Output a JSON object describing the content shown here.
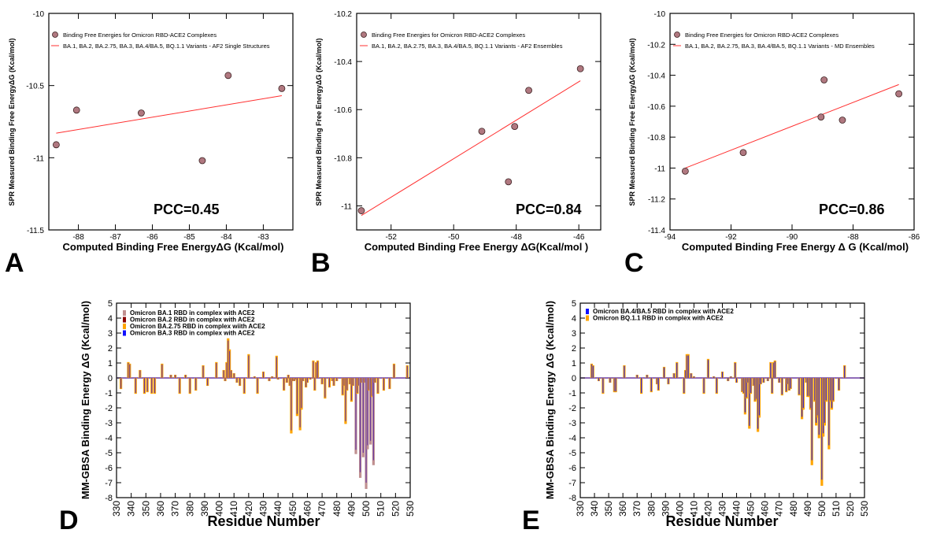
{
  "colors": {
    "point_fill": "#b07880",
    "fit_line": "#ff3030",
    "ba1": "#c09090",
    "ba2": "#8b0000",
    "ba275": "#ffa500",
    "ba3": "#1010ff",
    "ba45": "#1010ff",
    "bq11": "#ffa500",
    "combined": "#6a3aa0"
  },
  "chart_data": [
    {
      "id": "A",
      "type": "scatter",
      "panel_letter": "A",
      "legend": {
        "points": "Binding Free Energies for Omicron RBD-ACE2 Complexes",
        "line": "BA.1, BA.2, BA.2.75, BA.3, BA.4/BA.5, BQ.1.1 Variants - AF2 Single Structures"
      },
      "annotation": "PCC=0.45",
      "xlabel": "Computed Binding Free  EnergyΔG (Kcal/mol)",
      "ylabel": "SPR Measured Binding Free  EnergyΔG (Kcal/mol)",
      "xlim": [
        -88.8,
        -82.2
      ],
      "ylim": [
        -11.5,
        -10
      ],
      "xticks": [
        -88,
        -87,
        -86,
        -85,
        -84,
        -83
      ],
      "yticks": [
        -11.5,
        -11,
        -10.5,
        -10
      ],
      "ytick_labels": [
        "-11.5",
        "-11",
        "-10.5",
        "-10"
      ],
      "points": [
        {
          "x": -88.6,
          "y": -10.91
        },
        {
          "x": -88.05,
          "y": -10.67
        },
        {
          "x": -86.3,
          "y": -10.69
        },
        {
          "x": -84.65,
          "y": -11.02
        },
        {
          "x": -83.95,
          "y": -10.43
        },
        {
          "x": -82.5,
          "y": -10.52
        }
      ],
      "fit": [
        [
          -88.6,
          -10.83
        ],
        [
          -82.5,
          -10.57
        ]
      ]
    },
    {
      "id": "B",
      "type": "scatter",
      "panel_letter": "B",
      "legend": {
        "points": "Binding Free Energies for Omicron RBD-ACE2 Complexes",
        "line": "BA.1, BA.2, BA.2.75, BA.3, BA.4/BA.5, BQ.1.1 Variants - AF2 Ensembles"
      },
      "annotation": "PCC=0.84",
      "xlabel": "Computed Binding Free Energy ΔG(Kcal/mol )",
      "ylabel": "SPR Measured Binding Free  EnergyΔG (Kcal/mol)",
      "xlim": [
        -53.1,
        -45.3
      ],
      "ylim": [
        -11.1,
        -10.2
      ],
      "xticks": [
        -52,
        -50,
        -48,
        -46
      ],
      "yticks": [
        -11,
        -10.8,
        -10.6,
        -10.4,
        -10.2
      ],
      "ytick_labels": [
        "-11",
        "-10.8",
        "-10.6",
        "-10.4",
        "-10.2"
      ],
      "points": [
        {
          "x": -52.95,
          "y": -11.02
        },
        {
          "x": -49.1,
          "y": -10.69
        },
        {
          "x": -48.25,
          "y": -10.9
        },
        {
          "x": -48.05,
          "y": -10.67
        },
        {
          "x": -47.6,
          "y": -10.52
        },
        {
          "x": -45.95,
          "y": -10.43
        }
      ],
      "fit": [
        [
          -52.95,
          -11.04
        ],
        [
          -45.95,
          -10.48
        ]
      ]
    },
    {
      "id": "C",
      "type": "scatter",
      "panel_letter": "C",
      "legend": {
        "points": "Binding Free Energies for Omicron RBD-ACE2 Complexes",
        "line": "BA.1, BA.2, BA.2.75, BA.3, BA.4/BA.5, BQ.1.1 Variants - MD Ensembles"
      },
      "annotation": "PCC=0.86",
      "xlabel": "Computed Binding Free   Energy Δ G (Kcal/mol)",
      "ylabel": "SPR Measured Binding Free  EnergyΔG (Kcal/mol)",
      "xlim": [
        -94,
        -86
      ],
      "ylim": [
        -11.4,
        -10
      ],
      "xticks": [
        -94,
        -92,
        -90,
        -88,
        -86
      ],
      "yticks": [
        -11.4,
        -11.2,
        -11,
        -10.8,
        -10.6,
        -10.4,
        -10.2,
        -10
      ],
      "ytick_labels": [
        "-11.4",
        "-11.2",
        "-11",
        "-10.8",
        "-10.6",
        "-10.4",
        "-10.2",
        "-10"
      ],
      "points": [
        {
          "x": -93.5,
          "y": -11.02
        },
        {
          "x": -91.6,
          "y": -10.9
        },
        {
          "x": -89.05,
          "y": -10.67
        },
        {
          "x": -88.95,
          "y": -10.43
        },
        {
          "x": -88.35,
          "y": -10.69
        },
        {
          "x": -86.5,
          "y": -10.52
        }
      ],
      "fit": [
        [
          -93.5,
          -11.0
        ],
        [
          -86.5,
          -10.46
        ]
      ]
    },
    {
      "id": "D",
      "type": "bar",
      "panel_letter": "D",
      "xlabel": "Residue Number",
      "ylabel": "MM-GBSA Binding Energy  ΔG (Kcal/mol)",
      "xlim": [
        330,
        530
      ],
      "ylim": [
        -8,
        5
      ],
      "xticks": [
        330,
        340,
        350,
        360,
        370,
        380,
        390,
        400,
        410,
        420,
        430,
        440,
        450,
        460,
        470,
        480,
        490,
        500,
        510,
        520,
        530
      ],
      "yticks": [
        -8,
        -7,
        -6,
        -5,
        -4,
        -3,
        -2,
        -1,
        0,
        1,
        2,
        3,
        4,
        5
      ],
      "legend": [
        {
          "name": "Omicron BA.1 RBD  in complex with ACE2",
          "color": "#c09090"
        },
        {
          "name": "Omicron BA.2 RBD in complex with ACE2",
          "color": "#8b0000"
        },
        {
          "name": "Omicron BA.2.75 RBD in complex wiith ACE2",
          "color": "#ffa500"
        },
        {
          "name": "Omicron BA.3 RBD in complex with ACE2",
          "color": "#1010ff"
        }
      ],
      "bars": [
        [
          333,
          -0.7
        ],
        [
          338,
          1.0
        ],
        [
          339,
          0.9
        ],
        [
          343,
          -1.0
        ],
        [
          346,
          0.5
        ],
        [
          349,
          -1.0
        ],
        [
          351,
          -0.9
        ],
        [
          354,
          -1.0
        ],
        [
          356,
          -1.0
        ],
        [
          361,
          0.9
        ],
        [
          367,
          0.2
        ],
        [
          370,
          0.2
        ],
        [
          373,
          -1.0
        ],
        [
          377,
          0.2
        ],
        [
          380,
          -1.0
        ],
        [
          384,
          -0.8
        ],
        [
          389,
          0.8
        ],
        [
          392,
          -0.5
        ],
        [
          398,
          1.0
        ],
        [
          403,
          0.5
        ],
        [
          404,
          -0.2
        ],
        [
          405,
          1.0
        ],
        [
          406,
          2.5
        ],
        [
          407,
          1.8
        ],
        [
          408,
          0.5
        ],
        [
          410,
          0.3
        ],
        [
          412,
          -0.3
        ],
        [
          414,
          -0.5
        ],
        [
          417,
          -1.0
        ],
        [
          420,
          1.5
        ],
        [
          424,
          0.1
        ],
        [
          426,
          -1.0
        ],
        [
          430,
          0.4
        ],
        [
          434,
          -0.2
        ],
        [
          436,
          0.1
        ],
        [
          439,
          1.4
        ],
        [
          440,
          -0.1
        ],
        [
          444,
          -0.8
        ],
        [
          446,
          -0.3
        ],
        [
          447,
          0.2
        ],
        [
          448,
          -0.5
        ],
        [
          449,
          -3.5
        ],
        [
          450,
          -0.2
        ],
        [
          451,
          -0.2
        ],
        [
          452,
          -0.1
        ],
        [
          453,
          -2.4
        ],
        [
          455,
          -3.3
        ],
        [
          456,
          -2.0
        ],
        [
          457,
          -0.2
        ],
        [
          459,
          -0.6
        ],
        [
          460,
          -0.3
        ],
        [
          462,
          -0.1
        ],
        [
          464,
          1.1
        ],
        [
          465,
          -0.8
        ],
        [
          466,
          1.0
        ],
        [
          467,
          1.1
        ],
        [
          470,
          -0.4
        ],
        [
          472,
          -1.3
        ],
        [
          475,
          -0.6
        ],
        [
          477,
          -0.2
        ],
        [
          478,
          -0.5
        ],
        [
          480,
          -0.2
        ],
        [
          484,
          -1.1
        ],
        [
          485,
          -0.5
        ],
        [
          486,
          -2.9
        ],
        [
          487,
          -0.8
        ],
        [
          489,
          -0.4
        ],
        [
          490,
          -1.5
        ],
        [
          491,
          -0.5
        ],
        [
          493,
          -4.8
        ],
        [
          494,
          -1.0
        ],
        [
          495,
          -0.5
        ],
        [
          496,
          -6.3
        ],
        [
          497,
          -0.3
        ],
        [
          498,
          -5.0
        ],
        [
          499,
          -0.3
        ],
        [
          500,
          -7.0
        ],
        [
          501,
          -4.5
        ],
        [
          502,
          -0.8
        ],
        [
          503,
          -4.2
        ],
        [
          504,
          -1.2
        ],
        [
          505,
          -5.5
        ],
        [
          506,
          -0.3
        ],
        [
          508,
          -1.0
        ],
        [
          512,
          -0.8
        ],
        [
          516,
          -0.7
        ],
        [
          519,
          0.9
        ],
        [
          528,
          0.8
        ]
      ]
    },
    {
      "id": "E",
      "type": "bar",
      "panel_letter": "E",
      "xlabel": "Residue Number",
      "ylabel": "MM-GBSA Binding Energy  ΔG (Kcal/mol)",
      "xlim": [
        330,
        530
      ],
      "ylim": [
        -8,
        5
      ],
      "xticks": [
        330,
        340,
        350,
        360,
        370,
        380,
        390,
        400,
        410,
        420,
        430,
        440,
        450,
        460,
        470,
        480,
        490,
        500,
        510,
        520,
        530
      ],
      "yticks": [
        -8,
        -7,
        -6,
        -5,
        -4,
        -3,
        -2,
        -1,
        0,
        1,
        2,
        3,
        4,
        5
      ],
      "legend": [
        {
          "name": "Omicron BA.4/BA.5 RBD  in complex with ACE2",
          "color": "#1010ff"
        },
        {
          "name": "Omicron BQ.1.1 RBD in complex with ACE2",
          "color": "#ffa500"
        }
      ],
      "bars": [
        [
          338,
          0.9
        ],
        [
          339,
          0.8
        ],
        [
          343,
          -0.2
        ],
        [
          346,
          -1.0
        ],
        [
          351,
          -0.3
        ],
        [
          354,
          -0.9
        ],
        [
          355,
          -0.9
        ],
        [
          361,
          0.8
        ],
        [
          370,
          0.2
        ],
        [
          373,
          -1.0
        ],
        [
          377,
          0.2
        ],
        [
          380,
          -0.9
        ],
        [
          384,
          -0.4
        ],
        [
          385,
          -0.8
        ],
        [
          389,
          0.7
        ],
        [
          392,
          -0.4
        ],
        [
          396,
          0.3
        ],
        [
          398,
          1.0
        ],
        [
          403,
          -1.0
        ],
        [
          404,
          0.5
        ],
        [
          405,
          1.5
        ],
        [
          406,
          1.5
        ],
        [
          408,
          0.3
        ],
        [
          410,
          0.1
        ],
        [
          417,
          -1.0
        ],
        [
          420,
          1.2
        ],
        [
          424,
          0.1
        ],
        [
          426,
          -1.0
        ],
        [
          430,
          0.4
        ],
        [
          434,
          -0.2
        ],
        [
          436,
          0.1
        ],
        [
          439,
          1.0
        ],
        [
          440,
          -0.3
        ],
        [
          444,
          -0.9
        ],
        [
          445,
          -1.0
        ],
        [
          446,
          -2.3
        ],
        [
          447,
          -1.3
        ],
        [
          448,
          -0.3
        ],
        [
          449,
          -3.2
        ],
        [
          450,
          -1.0
        ],
        [
          452,
          -0.5
        ],
        [
          453,
          -1.5
        ],
        [
          454,
          -1.4
        ],
        [
          455,
          -3.4
        ],
        [
          456,
          -2.5
        ],
        [
          457,
          -0.4
        ],
        [
          459,
          -0.3
        ],
        [
          462,
          -0.2
        ],
        [
          464,
          1.0
        ],
        [
          465,
          -1.0
        ],
        [
          466,
          1.0
        ],
        [
          467,
          1.1
        ],
        [
          470,
          -0.3
        ],
        [
          472,
          -1.1
        ],
        [
          475,
          -0.9
        ],
        [
          476,
          -0.4
        ],
        [
          477,
          -0.8
        ],
        [
          478,
          -0.7
        ],
        [
          484,
          -1.1
        ],
        [
          486,
          -2.6
        ],
        [
          487,
          -2.0
        ],
        [
          489,
          -0.3
        ],
        [
          490,
          -1.2
        ],
        [
          491,
          -1.2
        ],
        [
          492,
          -2.0
        ],
        [
          493,
          -5.5
        ],
        [
          495,
          -1.5
        ],
        [
          496,
          -3.0
        ],
        [
          497,
          -2.5
        ],
        [
          498,
          -3.8
        ],
        [
          500,
          -6.8
        ],
        [
          501,
          -3.7
        ],
        [
          502,
          -3.0
        ],
        [
          503,
          -1.5
        ],
        [
          505,
          -4.5
        ],
        [
          506,
          -1.5
        ],
        [
          507,
          -2.0
        ],
        [
          508,
          -1.5
        ],
        [
          512,
          -0.8
        ],
        [
          516,
          0.8
        ]
      ]
    }
  ]
}
